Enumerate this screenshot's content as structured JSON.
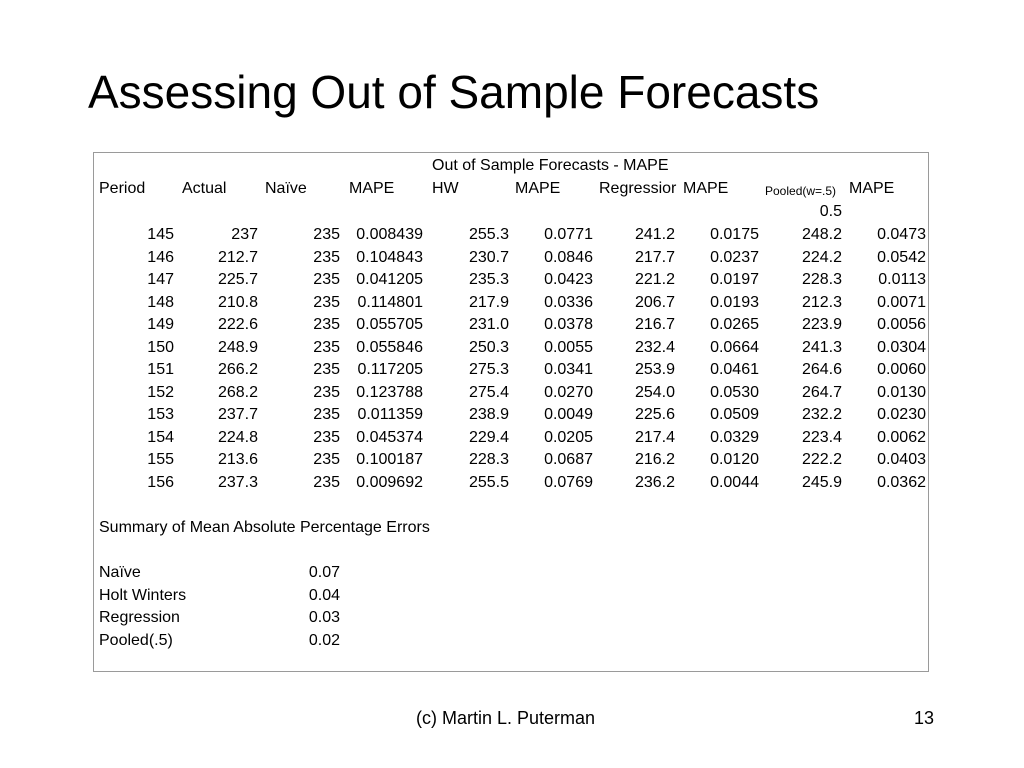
{
  "slide": {
    "title": "Assessing Out of Sample Forecasts",
    "footer_credit": "(c) Martin L. Puterman",
    "page_number": "13"
  },
  "table": {
    "caption": "Out of Sample Forecasts - MAPE",
    "headers": [
      "Period",
      "Actual",
      "Naïve",
      "MAPE",
      "HW",
      "MAPE",
      "Regressior",
      "MAPE",
      "Pooled(w=.5)",
      "MAPE"
    ],
    "pooled_weight": "0.5",
    "rows": [
      [
        "145",
        "237",
        "235",
        "0.008439",
        "255.3",
        "0.0771",
        "241.2",
        "0.0175",
        "248.2",
        "0.0473"
      ],
      [
        "146",
        "212.7",
        "235",
        "0.104843",
        "230.7",
        "0.0846",
        "217.7",
        "0.0237",
        "224.2",
        "0.0542"
      ],
      [
        "147",
        "225.7",
        "235",
        "0.041205",
        "235.3",
        "0.0423",
        "221.2",
        "0.0197",
        "228.3",
        "0.0113"
      ],
      [
        "148",
        "210.8",
        "235",
        "0.114801",
        "217.9",
        "0.0336",
        "206.7",
        "0.0193",
        "212.3",
        "0.0071"
      ],
      [
        "149",
        "222.6",
        "235",
        "0.055705",
        "231.0",
        "0.0378",
        "216.7",
        "0.0265",
        "223.9",
        "0.0056"
      ],
      [
        "150",
        "248.9",
        "235",
        "0.055846",
        "250.3",
        "0.0055",
        "232.4",
        "0.0664",
        "241.3",
        "0.0304"
      ],
      [
        "151",
        "266.2",
        "235",
        "0.117205",
        "275.3",
        "0.0341",
        "253.9",
        "0.0461",
        "264.6",
        "0.0060"
      ],
      [
        "152",
        "268.2",
        "235",
        "0.123788",
        "275.4",
        "0.0270",
        "254.0",
        "0.0530",
        "264.7",
        "0.0130"
      ],
      [
        "153",
        "237.7",
        "235",
        "0.011359",
        "238.9",
        "0.0049",
        "225.6",
        "0.0509",
        "232.2",
        "0.0230"
      ],
      [
        "154",
        "224.8",
        "235",
        "0.045374",
        "229.4",
        "0.0205",
        "217.4",
        "0.0329",
        "223.4",
        "0.0062"
      ],
      [
        "155",
        "213.6",
        "235",
        "0.100187",
        "228.3",
        "0.0687",
        "216.2",
        "0.0120",
        "222.2",
        "0.0403"
      ],
      [
        "156",
        "237.3",
        "235",
        "0.009692",
        "255.5",
        "0.0769",
        "236.2",
        "0.0044",
        "245.9",
        "0.0362"
      ]
    ]
  },
  "summary": {
    "title": "Summary of Mean Absolute Percentage Errors",
    "items": [
      {
        "label": "Naïve",
        "value": "0.07"
      },
      {
        "label": "Holt Winters",
        "value": "0.04"
      },
      {
        "label": "Regression",
        "value": "0.03"
      },
      {
        "label": "Pooled(.5)",
        "value": "0.02"
      }
    ]
  }
}
